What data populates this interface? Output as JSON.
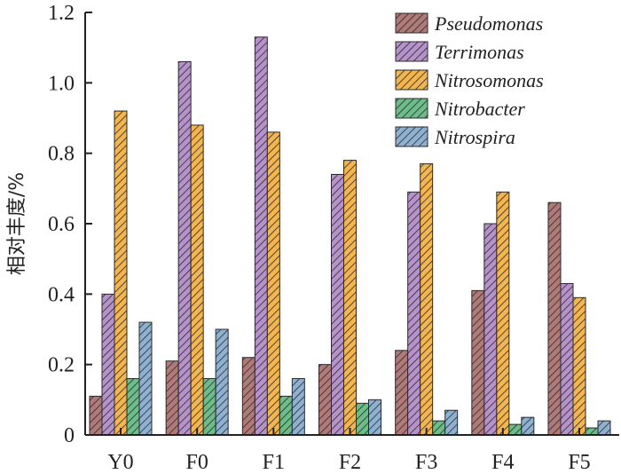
{
  "chart_data": {
    "type": "bar",
    "title": "",
    "xlabel": "",
    "ylabel": "相对丰度/%",
    "ylim": [
      0,
      1.2
    ],
    "yticks": [
      "0",
      "0.2",
      "0.4",
      "0.6",
      "0.8",
      "1.0",
      "1.2"
    ],
    "categories": [
      "Y0",
      "F0",
      "F1",
      "F2",
      "F3",
      "F4",
      "F5"
    ],
    "legend_position": "top-right",
    "grid": false,
    "series": [
      {
        "name": "Pseudomonas",
        "color": "#b07a78",
        "values": [
          0.11,
          0.21,
          0.22,
          0.2,
          0.24,
          0.41,
          0.66
        ]
      },
      {
        "name": "Terrimonas",
        "color": "#b592c9",
        "values": [
          0.4,
          1.06,
          1.13,
          0.74,
          0.69,
          0.6,
          0.43
        ]
      },
      {
        "name": "Nitrosomonas",
        "color": "#f2b54f",
        "values": [
          0.92,
          0.88,
          0.86,
          0.78,
          0.77,
          0.69,
          0.39
        ]
      },
      {
        "name": "Nitrobacter",
        "color": "#6cbd8a",
        "values": [
          0.16,
          0.16,
          0.11,
          0.09,
          0.04,
          0.03,
          0.02
        ]
      },
      {
        "name": "Nitrospira",
        "color": "#8fb1d1",
        "values": [
          0.32,
          0.3,
          0.16,
          0.1,
          0.07,
          0.05,
          0.04
        ]
      }
    ]
  }
}
